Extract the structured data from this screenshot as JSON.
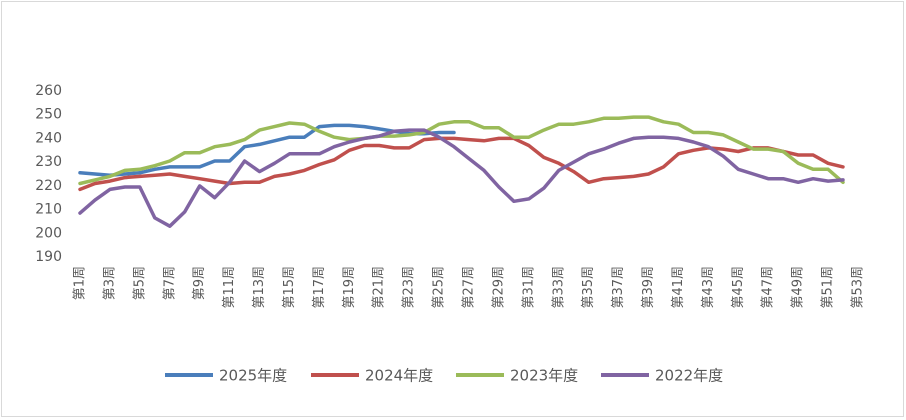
{
  "chart_data": {
    "type": "line",
    "categories": [
      "第1周",
      null,
      "第3周",
      null,
      "第5周",
      null,
      "第7周",
      null,
      "第9周",
      null,
      "第11周",
      null,
      "第13周",
      null,
      "第15周",
      null,
      "第17周",
      null,
      "第19周",
      null,
      "第21周",
      null,
      "第23周",
      null,
      "第25周",
      null,
      "第27周",
      null,
      "第29周",
      null,
      "第31周",
      null,
      "第33周",
      null,
      "第35周",
      null,
      "第37周",
      null,
      "第39周",
      null,
      "第41周",
      null,
      "第43周",
      null,
      "第45周",
      null,
      "第47周",
      null,
      "第49周",
      null,
      "第51周",
      null,
      "第53周"
    ],
    "series": [
      {
        "name": "2025年度",
        "color": "#4a7ebb",
        "values": [
          225.5,
          225,
          224.5,
          225,
          225.5,
          227,
          228,
          228,
          228,
          230.5,
          230.5,
          236.5,
          237.5,
          239,
          240.5,
          240.5,
          245,
          245.5,
          245.5,
          245,
          244,
          243,
          242,
          242,
          242.5,
          242.5,
          null,
          null,
          null,
          null,
          null,
          null,
          null,
          null,
          null,
          null,
          null,
          null,
          null,
          null,
          null,
          null,
          null,
          null,
          null,
          null,
          null,
          null,
          null,
          null,
          null,
          null,
          null
        ]
      },
      {
        "name": "2024年度",
        "color": "#c0504d",
        "values": [
          218.5,
          221,
          222,
          223.5,
          224,
          224.5,
          225,
          224,
          223,
          222,
          221,
          221.5,
          221.5,
          224,
          225,
          226.5,
          229,
          231,
          235,
          237,
          237,
          236,
          236,
          239.5,
          240,
          240,
          239.5,
          239,
          240,
          240,
          237,
          232,
          229.5,
          226,
          221.5,
          223,
          223.5,
          224,
          225,
          228,
          233.5,
          235,
          236,
          235.5,
          234.5,
          236,
          236,
          234.5,
          233,
          233,
          229.5,
          228,
          null
        ]
      },
      {
        "name": "2023年度",
        "color": "#9bbb59",
        "values": [
          221,
          222.5,
          224,
          226.5,
          227,
          228.5,
          230.5,
          234,
          234,
          236.5,
          237.5,
          239.5,
          243.5,
          245,
          246.5,
          246,
          243,
          240.5,
          239.5,
          240,
          241,
          241,
          241.5,
          242.5,
          246,
          247,
          247,
          244.5,
          244.5,
          240.5,
          240.5,
          243.5,
          246,
          246,
          247,
          248.5,
          248.5,
          249,
          249,
          247,
          246,
          242.5,
          242.5,
          241.5,
          238.5,
          235.5,
          235.5,
          234.5,
          229.5,
          227,
          227,
          221.5,
          null
        ]
      },
      {
        "name": "2022年度",
        "color": "#8064a2",
        "values": [
          208.5,
          214,
          218.5,
          219.5,
          219.5,
          206.5,
          203,
          209,
          220,
          215,
          221.5,
          230.5,
          226,
          229.5,
          233.5,
          233.5,
          233.5,
          236.5,
          238.5,
          240,
          241,
          243,
          243.5,
          243.5,
          240.5,
          236.5,
          231.5,
          226.5,
          219.5,
          213.5,
          214.5,
          219,
          226.5,
          230,
          233.5,
          235.5,
          238,
          240,
          240.5,
          240.5,
          240,
          238.5,
          236.5,
          232.5,
          227,
          225,
          223,
          223,
          221.5,
          223,
          222,
          222.5,
          null
        ]
      }
    ],
    "ylim": [
      190,
      260
    ],
    "yticks": [
      190,
      200,
      210,
      220,
      230,
      240,
      250,
      260
    ],
    "grid": false
  }
}
